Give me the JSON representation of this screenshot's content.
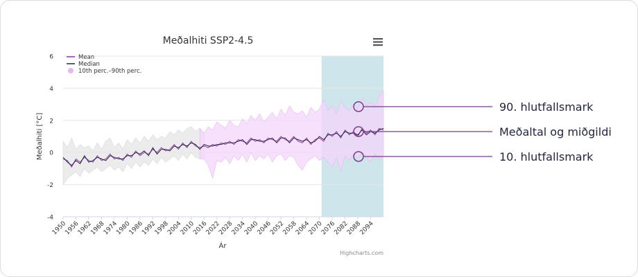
{
  "chart_data": {
    "type": "line",
    "title": "Meðalhiti SSP2-4.5",
    "xlabel": "Ár",
    "ylabel": "Meðalhiti [°C]",
    "ylim": [
      -4,
      6
    ],
    "yticks": [
      -4,
      -2,
      0,
      2,
      4,
      6
    ],
    "xlim": [
      1950,
      2100
    ],
    "xticks": [
      1950,
      1956,
      1962,
      1968,
      1974,
      1980,
      1986,
      1992,
      1998,
      2004,
      2010,
      2016,
      2022,
      2028,
      2034,
      2040,
      2046,
      2052,
      2058,
      2064,
      2070,
      2076,
      2082,
      2088,
      2094
    ],
    "grid": true,
    "legend_position": "top-left",
    "historical_end": 2014,
    "highlight_range": [
      2071,
      2100
    ],
    "series": [
      {
        "name": "Mean",
        "color": "#8a3ca8"
      },
      {
        "name": "Median",
        "color": "#2a2342"
      },
      {
        "name": "10th perc.–90th perc.",
        "color": "#e6b8f2"
      }
    ],
    "years": [
      1950,
      1952,
      1954,
      1956,
      1958,
      1960,
      1962,
      1964,
      1966,
      1968,
      1970,
      1972,
      1974,
      1976,
      1978,
      1980,
      1982,
      1984,
      1986,
      1988,
      1990,
      1992,
      1994,
      1996,
      1998,
      2000,
      2002,
      2004,
      2006,
      2008,
      2010,
      2012,
      2014,
      2016,
      2018,
      2020,
      2022,
      2024,
      2026,
      2028,
      2030,
      2032,
      2034,
      2036,
      2038,
      2040,
      2042,
      2044,
      2046,
      2048,
      2050,
      2052,
      2054,
      2056,
      2058,
      2060,
      2062,
      2064,
      2066,
      2068,
      2070,
      2072,
      2074,
      2076,
      2078,
      2080,
      2082,
      2084,
      2086,
      2088,
      2090,
      2092,
      2094,
      2096,
      2098,
      2100
    ],
    "mean": [
      -0.4,
      -0.5,
      -0.9,
      -0.4,
      -0.6,
      -0.3,
      -0.5,
      -0.6,
      -0.2,
      -0.5,
      -0.4,
      -0.1,
      -0.4,
      -0.3,
      -0.5,
      -0.1,
      -0.3,
      0.1,
      -0.2,
      0.0,
      -0.1,
      0.2,
      0.0,
      0.3,
      0.1,
      0.2,
      0.5,
      0.2,
      0.6,
      0.3,
      0.7,
      0.4,
      0.3,
      0.4,
      0.3,
      0.5,
      0.4,
      0.6,
      0.5,
      0.7,
      0.5,
      0.8,
      0.7,
      0.6,
      0.9,
      0.7,
      0.8,
      0.6,
      0.9,
      0.8,
      0.7,
      1.0,
      0.8,
      0.7,
      1.0,
      0.7,
      0.6,
      0.9,
      0.5,
      0.8,
      0.9,
      0.7,
      1.2,
      1.0,
      1.3,
      0.9,
      1.4,
      1.1,
      1.3,
      1.0,
      1.5,
      1.2,
      1.4,
      1.1,
      1.5,
      1.4
    ],
    "median": [
      -0.3,
      -0.6,
      -0.8,
      -0.5,
      -0.7,
      -0.2,
      -0.6,
      -0.5,
      -0.3,
      -0.4,
      -0.5,
      -0.2,
      -0.3,
      -0.4,
      -0.4,
      -0.2,
      -0.2,
      0.0,
      -0.1,
      0.1,
      -0.2,
      0.3,
      -0.1,
      0.2,
      0.2,
      0.1,
      0.4,
      0.3,
      0.5,
      0.4,
      0.6,
      0.5,
      0.2,
      0.5,
      0.4,
      0.4,
      0.5,
      0.5,
      0.6,
      0.6,
      0.6,
      0.7,
      0.8,
      0.5,
      0.8,
      0.8,
      0.7,
      0.7,
      0.8,
      0.9,
      0.6,
      0.9,
      0.9,
      0.6,
      0.9,
      0.8,
      0.7,
      0.8,
      0.6,
      0.7,
      1.0,
      0.8,
      1.1,
      1.1,
      1.2,
      1.0,
      1.3,
      1.2,
      1.2,
      1.1,
      1.4,
      1.1,
      1.3,
      1.2,
      1.4,
      1.5
    ],
    "p10": [
      -2.0,
      -1.6,
      -1.4,
      -1.2,
      -1.5,
      -1.0,
      -1.3,
      -1.1,
      -0.9,
      -1.2,
      -1.0,
      -0.8,
      -1.1,
      -0.9,
      -1.2,
      -0.7,
      -1.0,
      -0.6,
      -0.9,
      -0.6,
      -0.8,
      -0.4,
      -0.7,
      -0.3,
      -0.6,
      -0.4,
      -0.2,
      -0.5,
      -0.1,
      -0.4,
      0.0,
      -0.3,
      -0.4,
      -0.4,
      -0.8,
      -1.6,
      -0.5,
      -0.6,
      -0.3,
      -0.7,
      -0.2,
      -0.5,
      -0.1,
      -0.6,
      0.0,
      -0.5,
      -0.2,
      -0.4,
      -0.1,
      -0.6,
      -0.2,
      -0.1,
      -0.5,
      -0.2,
      -0.3,
      -0.8,
      -1.1,
      -0.6,
      -0.4,
      -0.2,
      -0.5,
      -0.3,
      -0.6,
      -0.9,
      -0.3,
      -1.2,
      -0.2,
      -0.5,
      -0.1,
      -0.4,
      0.0,
      -0.3,
      -0.6,
      -0.1,
      -0.5,
      -0.2
    ],
    "p90": [
      0.7,
      0.3,
      0.9,
      0.2,
      0.5,
      0.3,
      0.4,
      0.1,
      0.6,
      0.2,
      0.7,
      0.9,
      0.3,
      0.6,
      0.2,
      0.8,
      0.5,
      0.9,
      0.6,
      1.0,
      0.7,
      1.1,
      0.8,
      1.0,
      0.9,
      1.3,
      1.1,
      1.4,
      1.2,
      1.5,
      1.6,
      1.3,
      1.5,
      1.2,
      1.6,
      1.4,
      1.9,
      1.7,
      1.5,
      2.0,
      1.7,
      1.6,
      2.1,
      1.8,
      2.3,
      2.0,
      2.4,
      1.9,
      2.2,
      2.5,
      2.1,
      2.7,
      2.3,
      2.9,
      2.5,
      2.4,
      2.6,
      2.2,
      2.8,
      2.5,
      2.7,
      3.3,
      2.6,
      2.9,
      2.4,
      3.2,
      2.8,
      2.6,
      3.0,
      2.7,
      3.4,
      2.9,
      3.1,
      2.8,
      3.5,
      3.8
    ]
  },
  "annotations": {
    "p90_label": "90. hlutfallsmark",
    "mean_label": "Meðaltal og miðgildi",
    "p10_label": "10. hlutfallsmark",
    "color": "#7b3b8c"
  },
  "credit": "Highcharts.com",
  "colors": {
    "historical_band": "#e6e6e6",
    "projection_band": "#f3d6fb",
    "highlight": "#cfe5ec",
    "grid": "#e6e6e6",
    "axis_text": "#333333"
  }
}
